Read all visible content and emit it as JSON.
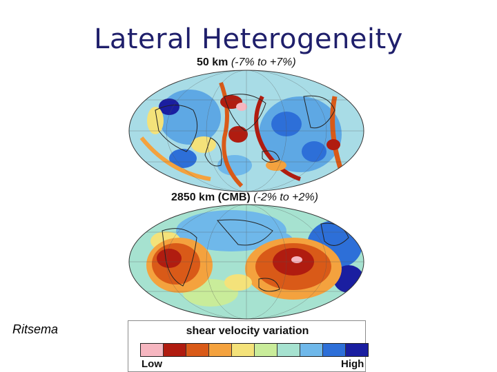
{
  "slide": {
    "title": "Lateral Heterogeneity",
    "credit": "Ritsema"
  },
  "maps": {
    "top": {
      "depth": "50 km",
      "range": "(-7% to +7%)"
    },
    "bottom": {
      "depth": "2850 km (CMB)",
      "range": "(-2% to +2%)"
    }
  },
  "legend": {
    "title": "shear velocity variation",
    "low_label": "Low",
    "high_label": "High",
    "colors": [
      "#f6b6c0",
      "#b01c10",
      "#d95a18",
      "#f4a23e",
      "#f4e27a",
      "#c9ec9a",
      "#a6e2d0",
      "#6fb8ea",
      "#2d6fd8",
      "#1a1ea0"
    ]
  }
}
